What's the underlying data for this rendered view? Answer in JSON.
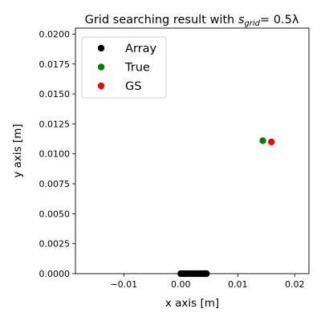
{
  "chart_data": {
    "type": "scatter",
    "title": {
      "prefix": "Grid searching result with ",
      "symbol": "s",
      "subscript": "grid",
      "suffix": "= 0.5λ"
    },
    "xlabel": "x axis [m]",
    "ylabel": "y axis [m]",
    "xlim": [
      -0.0185,
      0.0225
    ],
    "ylim": [
      0.0,
      0.0205
    ],
    "xticks": [
      -0.01,
      0.0,
      0.01,
      0.02
    ],
    "xtick_labels": [
      "−0.01",
      "0.00",
      "0.01",
      "0.02"
    ],
    "yticks": [
      0.0,
      0.0025,
      0.005,
      0.0075,
      0.01,
      0.0125,
      0.015,
      0.0175,
      0.02
    ],
    "ytick_labels": [
      "0.0000",
      "0.0025",
      "0.0050",
      "0.0075",
      "0.0100",
      "0.0125",
      "0.0150",
      "0.0175",
      "0.0200"
    ],
    "grid": false,
    "legend_position": "top-left",
    "series": [
      {
        "name": "Array",
        "color": "#000000",
        "points": [
          [
            0.0,
            0.0
          ],
          [
            0.0005,
            0.0
          ],
          [
            0.001,
            0.0
          ],
          [
            0.0015,
            0.0
          ],
          [
            0.002,
            0.0
          ],
          [
            0.0025,
            0.0
          ],
          [
            0.003,
            0.0
          ],
          [
            0.0035,
            0.0
          ],
          [
            0.004,
            0.0
          ],
          [
            0.0045,
            0.0
          ]
        ]
      },
      {
        "name": "True",
        "color": "#008000",
        "points": [
          [
            0.0144,
            0.0111
          ]
        ]
      },
      {
        "name": "GS",
        "color": "#ff0000",
        "points": [
          [
            0.0159,
            0.011
          ]
        ]
      }
    ]
  }
}
